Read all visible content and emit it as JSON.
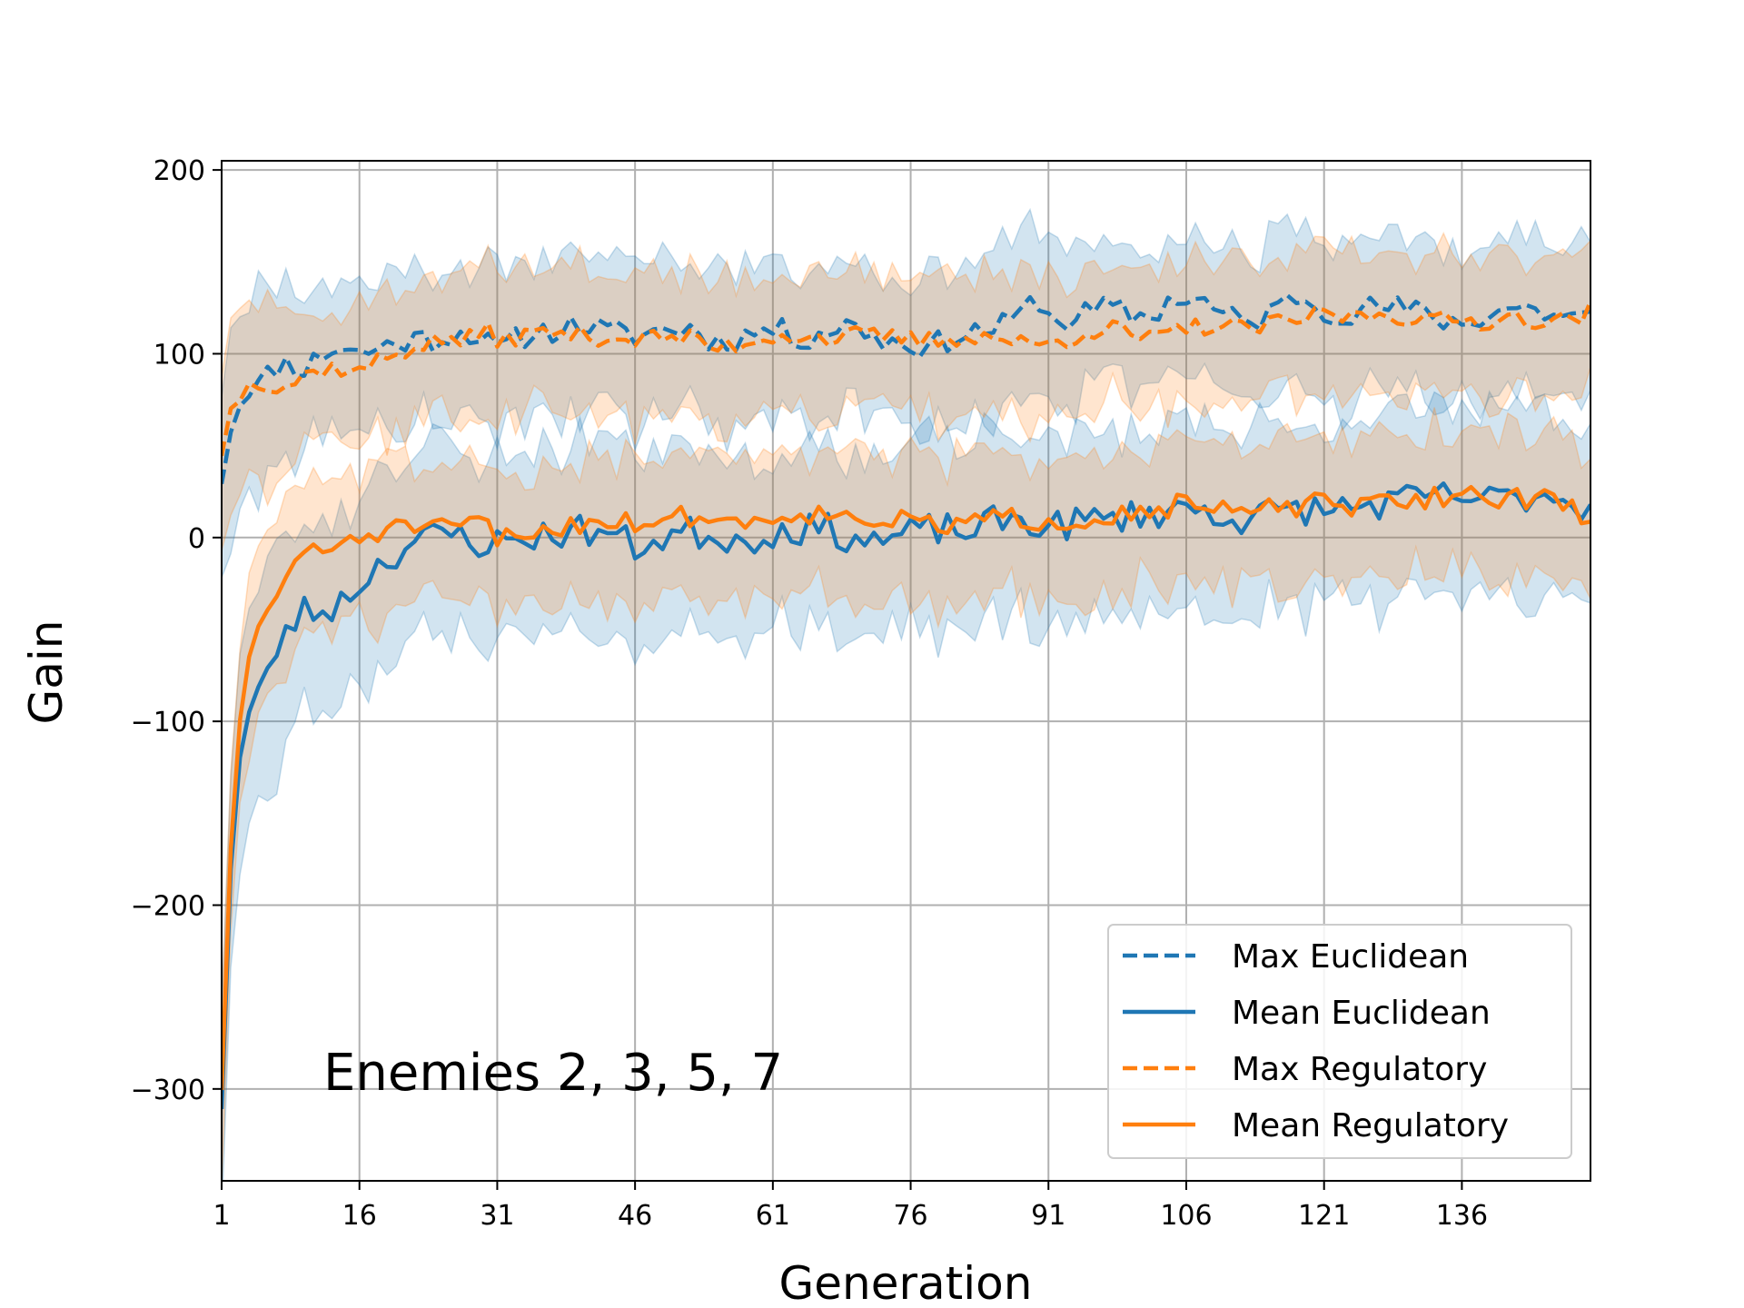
{
  "chart_data": {
    "type": "line",
    "xlabel": "Generation",
    "ylabel": "Gain",
    "annotation": "Enemies 2, 3, 5, 7",
    "xlim": [
      1,
      150
    ],
    "ylim": [
      -350,
      205
    ],
    "xticks": [
      1,
      16,
      31,
      46,
      61,
      76,
      91,
      106,
      121,
      136
    ],
    "yticks": [
      200,
      100,
      0,
      -100,
      -200,
      -300
    ],
    "ytick_labels": [
      "200",
      "100",
      "0",
      "−100",
      "−200",
      "−300"
    ],
    "grid": true,
    "legend_position": "lower-right",
    "colors": {
      "euclidean": "#1f77b4",
      "regulatory": "#ff7f0e"
    },
    "series": [
      {
        "name": "Max Euclidean",
        "style": "dashed",
        "color": "#1f77b4",
        "keypoints": [
          [
            1,
            30
          ],
          [
            2,
            58
          ],
          [
            3,
            72
          ],
          [
            4,
            78
          ],
          [
            5,
            85
          ],
          [
            6,
            92
          ],
          [
            8,
            95
          ],
          [
            10,
            92
          ],
          [
            12,
            100
          ],
          [
            14,
            104
          ],
          [
            16,
            100
          ],
          [
            18,
            103
          ],
          [
            20,
            106
          ],
          [
            22,
            108
          ],
          [
            24,
            108
          ],
          [
            26,
            110
          ],
          [
            28,
            112
          ],
          [
            30,
            105
          ],
          [
            31,
            102
          ],
          [
            34,
            110
          ],
          [
            37,
            113
          ],
          [
            40,
            116
          ],
          [
            43,
            112
          ],
          [
            46,
            110
          ],
          [
            49,
            113
          ],
          [
            52,
            114
          ],
          [
            55,
            106
          ],
          [
            58,
            110
          ],
          [
            61,
            114
          ],
          [
            64,
            108
          ],
          [
            67,
            113
          ],
          [
            70,
            116
          ],
          [
            73,
            107
          ],
          [
            76,
            106
          ],
          [
            78,
            103
          ],
          [
            80,
            108
          ],
          [
            83,
            112
          ],
          [
            86,
            115
          ],
          [
            88,
            122
          ],
          [
            90,
            130
          ],
          [
            91,
            120
          ],
          [
            93,
            118
          ],
          [
            95,
            122
          ],
          [
            98,
            125
          ],
          [
            100,
            121
          ],
          [
            102,
            120
          ],
          [
            104,
            128
          ],
          [
            106,
            131
          ],
          [
            108,
            128
          ],
          [
            110,
            121
          ],
          [
            113,
            116
          ],
          [
            116,
            125
          ],
          [
            118,
            132
          ],
          [
            121,
            124
          ],
          [
            124,
            122
          ],
          [
            127,
            126
          ],
          [
            130,
            124
          ],
          [
            133,
            120
          ],
          [
            136,
            116
          ],
          [
            139,
            122
          ],
          [
            142,
            126
          ],
          [
            145,
            122
          ],
          [
            148,
            120
          ],
          [
            150,
            120
          ]
        ]
      },
      {
        "name": "Mean Euclidean",
        "style": "solid",
        "color": "#1f77b4",
        "keypoints": [
          [
            1,
            -310
          ],
          [
            2,
            -180
          ],
          [
            3,
            -120
          ],
          [
            4,
            -95
          ],
          [
            5,
            -82
          ],
          [
            6,
            -72
          ],
          [
            7,
            -60
          ],
          [
            8,
            -52
          ],
          [
            9,
            -45
          ],
          [
            10,
            -40
          ],
          [
            12,
            -40
          ],
          [
            14,
            -35
          ],
          [
            16,
            -25
          ],
          [
            18,
            -15
          ],
          [
            20,
            -8
          ],
          [
            22,
            -2
          ],
          [
            24,
            0
          ],
          [
            26,
            2
          ],
          [
            28,
            0
          ],
          [
            30,
            -5
          ],
          [
            31,
            -3
          ],
          [
            34,
            0
          ],
          [
            37,
            2
          ],
          [
            40,
            4
          ],
          [
            43,
            3
          ],
          [
            46,
            -5
          ],
          [
            49,
            0
          ],
          [
            52,
            3
          ],
          [
            55,
            1
          ],
          [
            58,
            -2
          ],
          [
            61,
            3
          ],
          [
            64,
            5
          ],
          [
            67,
            4
          ],
          [
            70,
            0
          ],
          [
            73,
            -2
          ],
          [
            76,
            2
          ],
          [
            79,
            5
          ],
          [
            82,
            3
          ],
          [
            85,
            8
          ],
          [
            88,
            10
          ],
          [
            91,
            6
          ],
          [
            94,
            8
          ],
          [
            97,
            10
          ],
          [
            100,
            12
          ],
          [
            103,
            14
          ],
          [
            106,
            16
          ],
          [
            108,
            15
          ],
          [
            110,
            12
          ],
          [
            113,
            10
          ],
          [
            116,
            14
          ],
          [
            119,
            16
          ],
          [
            121,
            14
          ],
          [
            124,
            17
          ],
          [
            127,
            18
          ],
          [
            130,
            20
          ],
          [
            133,
            22
          ],
          [
            136,
            22
          ],
          [
            139,
            20
          ],
          [
            142,
            22
          ],
          [
            145,
            24
          ],
          [
            148,
            20
          ],
          [
            150,
            15
          ]
        ]
      },
      {
        "name": "Max Regulatory",
        "style": "dashed",
        "color": "#ff7f0e",
        "keypoints": [
          [
            1,
            45
          ],
          [
            2,
            70
          ],
          [
            3,
            75
          ],
          [
            4,
            85
          ],
          [
            5,
            82
          ],
          [
            6,
            80
          ],
          [
            8,
            82
          ],
          [
            10,
            88
          ],
          [
            12,
            92
          ],
          [
            14,
            92
          ],
          [
            16,
            90
          ],
          [
            18,
            96
          ],
          [
            20,
            100
          ],
          [
            22,
            104
          ],
          [
            24,
            106
          ],
          [
            26,
            108
          ],
          [
            28,
            108
          ],
          [
            30,
            112
          ],
          [
            31,
            108
          ],
          [
            34,
            110
          ],
          [
            37,
            112
          ],
          [
            40,
            110
          ],
          [
            43,
            109
          ],
          [
            46,
            108
          ],
          [
            49,
            109
          ],
          [
            52,
            108
          ],
          [
            55,
            103
          ],
          [
            58,
            106
          ],
          [
            61,
            110
          ],
          [
            64,
            110
          ],
          [
            67,
            108
          ],
          [
            70,
            110
          ],
          [
            73,
            109
          ],
          [
            76,
            108
          ],
          [
            78,
            107
          ],
          [
            80,
            108
          ],
          [
            83,
            110
          ],
          [
            86,
            108
          ],
          [
            88,
            106
          ],
          [
            90,
            104
          ],
          [
            91,
            106
          ],
          [
            93,
            108
          ],
          [
            95,
            112
          ],
          [
            98,
            114
          ],
          [
            100,
            110
          ],
          [
            102,
            108
          ],
          [
            104,
            110
          ],
          [
            106,
            114
          ],
          [
            108,
            115
          ],
          [
            110,
            114
          ],
          [
            113,
            114
          ],
          [
            116,
            116
          ],
          [
            118,
            118
          ],
          [
            121,
            122
          ],
          [
            124,
            120
          ],
          [
            127,
            122
          ],
          [
            130,
            120
          ],
          [
            133,
            118
          ],
          [
            136,
            118
          ],
          [
            139,
            118
          ],
          [
            142,
            120
          ],
          [
            145,
            118
          ],
          [
            148,
            118
          ],
          [
            150,
            124
          ]
        ]
      },
      {
        "name": "Mean Regulatory",
        "style": "solid",
        "color": "#ff7f0e",
        "keypoints": [
          [
            1,
            -300
          ],
          [
            2,
            -170
          ],
          [
            3,
            -100
          ],
          [
            4,
            -65
          ],
          [
            5,
            -48
          ],
          [
            6,
            -40
          ],
          [
            7,
            -30
          ],
          [
            8,
            -20
          ],
          [
            9,
            -12
          ],
          [
            10,
            -8
          ],
          [
            12,
            -10
          ],
          [
            14,
            -2
          ],
          [
            16,
            0
          ],
          [
            18,
            3
          ],
          [
            20,
            5
          ],
          [
            22,
            6
          ],
          [
            24,
            4
          ],
          [
            26,
            4
          ],
          [
            28,
            8
          ],
          [
            30,
            8
          ],
          [
            31,
            -2
          ],
          [
            34,
            2
          ],
          [
            37,
            5
          ],
          [
            40,
            8
          ],
          [
            43,
            10
          ],
          [
            46,
            8
          ],
          [
            49,
            10
          ],
          [
            52,
            12
          ],
          [
            55,
            10
          ],
          [
            58,
            8
          ],
          [
            61,
            12
          ],
          [
            64,
            14
          ],
          [
            67,
            12
          ],
          [
            70,
            12
          ],
          [
            73,
            10
          ],
          [
            76,
            8
          ],
          [
            79,
            6
          ],
          [
            82,
            8
          ],
          [
            85,
            10
          ],
          [
            88,
            10
          ],
          [
            91,
            9
          ],
          [
            94,
            10
          ],
          [
            97,
            12
          ],
          [
            100,
            14
          ],
          [
            103,
            16
          ],
          [
            106,
            18
          ],
          [
            108,
            16
          ],
          [
            110,
            14
          ],
          [
            113,
            14
          ],
          [
            116,
            16
          ],
          [
            119,
            18
          ],
          [
            121,
            18
          ],
          [
            124,
            16
          ],
          [
            127,
            18
          ],
          [
            130,
            20
          ],
          [
            133,
            22
          ],
          [
            136,
            24
          ],
          [
            139,
            22
          ],
          [
            142,
            22
          ],
          [
            145,
            20
          ],
          [
            148,
            15
          ],
          [
            150,
            12
          ]
        ]
      }
    ]
  }
}
